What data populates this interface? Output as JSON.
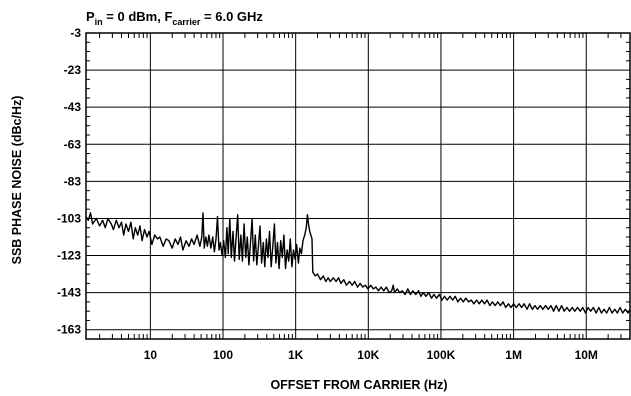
{
  "chart_data": {
    "type": "line",
    "title": {
      "p_label": "P",
      "p_sub": "in",
      "p_rest": " = 0 dBm, F",
      "f_sub": "carrier",
      "f_rest": " = 6.0 GHz"
    },
    "xlabel": "OFFSET FROM CARRIER (Hz)",
    "ylabel": "SSB PHASE NOISE (dBc/Hz)",
    "x_scale": "log",
    "xlim": [
      1.3,
      40000000
    ],
    "ylim": [
      -168,
      -3
    ],
    "grid": true,
    "x_ticks": [
      {
        "value": 10,
        "label": "10"
      },
      {
        "value": 100,
        "label": "100"
      },
      {
        "value": 1000,
        "label": "1K"
      },
      {
        "value": 10000,
        "label": "10K"
      },
      {
        "value": 100000,
        "label": "100K"
      },
      {
        "value": 1000000,
        "label": "1M"
      },
      {
        "value": 10000000,
        "label": "10M"
      }
    ],
    "y_ticks": [
      -3,
      -23,
      -43,
      -63,
      -83,
      -103,
      -123,
      -143,
      -163
    ],
    "series": [
      {
        "color": "#000000",
        "points": [
          [
            1.3,
            -102
          ],
          [
            1.4,
            -104
          ],
          [
            1.5,
            -100
          ],
          [
            1.6,
            -106
          ],
          [
            1.8,
            -103
          ],
          [
            2.0,
            -107
          ],
          [
            2.2,
            -104
          ],
          [
            2.4,
            -108
          ],
          [
            2.6,
            -103
          ],
          [
            2.9,
            -106
          ],
          [
            3.1,
            -109
          ],
          [
            3.4,
            -104
          ],
          [
            3.7,
            -108
          ],
          [
            4.0,
            -105
          ],
          [
            4.3,
            -112
          ],
          [
            4.6,
            -106
          ],
          [
            5.0,
            -110
          ],
          [
            5.4,
            -105
          ],
          [
            5.8,
            -114
          ],
          [
            6.2,
            -108
          ],
          [
            6.7,
            -112
          ],
          [
            7.2,
            -107
          ],
          [
            7.7,
            -115
          ],
          [
            8.3,
            -109
          ],
          [
            9.0,
            -113
          ],
          [
            9.6,
            -110
          ],
          [
            10.5,
            -117
          ],
          [
            11.5,
            -112
          ],
          [
            12.5,
            -114
          ],
          [
            13.5,
            -113
          ],
          [
            15,
            -118
          ],
          [
            16.5,
            -114
          ],
          [
            18,
            -115
          ],
          [
            20,
            -119
          ],
          [
            22,
            -114
          ],
          [
            24,
            -117
          ],
          [
            26,
            -113
          ],
          [
            28,
            -120
          ],
          [
            31,
            -115
          ],
          [
            34,
            -118
          ],
          [
            37,
            -114
          ],
          [
            40,
            -117
          ],
          [
            44,
            -112
          ],
          [
            48,
            -118
          ],
          [
            51,
            -113
          ],
          [
            53,
            -100
          ],
          [
            55,
            -119
          ],
          [
            58,
            -113
          ],
          [
            61,
            -118
          ],
          [
            64,
            -112
          ],
          [
            68,
            -119
          ],
          [
            72,
            -113
          ],
          [
            76,
            -121
          ],
          [
            80,
            -114
          ],
          [
            84,
            -102
          ],
          [
            88,
            -120
          ],
          [
            92,
            -116
          ],
          [
            97,
            -123
          ],
          [
            102,
            -115
          ],
          [
            108,
            -124
          ],
          [
            113,
            -108
          ],
          [
            118,
            -122
          ],
          [
            124,
            -103
          ],
          [
            130,
            -124
          ],
          [
            137,
            -110
          ],
          [
            144,
            -126
          ],
          [
            151,
            -114
          ],
          [
            159,
            -101
          ],
          [
            167,
            -125
          ],
          [
            176,
            -112
          ],
          [
            185,
            -126
          ],
          [
            195,
            -106
          ],
          [
            205,
            -124
          ],
          [
            216,
            -113
          ],
          [
            227,
            -128
          ],
          [
            239,
            -116
          ],
          [
            251,
            -103
          ],
          [
            264,
            -126
          ],
          [
            278,
            -112
          ],
          [
            292,
            -128
          ],
          [
            307,
            -118
          ],
          [
            323,
            -107
          ],
          [
            340,
            -127
          ],
          [
            358,
            -116
          ],
          [
            376,
            -129
          ],
          [
            396,
            -114
          ],
          [
            416,
            -124
          ],
          [
            437,
            -110
          ],
          [
            460,
            -129
          ],
          [
            484,
            -118
          ],
          [
            509,
            -106
          ],
          [
            535,
            -127
          ],
          [
            563,
            -116
          ],
          [
            592,
            -130
          ],
          [
            623,
            -115
          ],
          [
            655,
            -124
          ],
          [
            689,
            -112
          ],
          [
            725,
            -130
          ],
          [
            762,
            -120
          ],
          [
            802,
            -126
          ],
          [
            843,
            -114
          ],
          [
            887,
            -129
          ],
          [
            933,
            -120
          ],
          [
            982,
            -125
          ],
          [
            1030,
            -117
          ],
          [
            1090,
            -127
          ],
          [
            1140,
            -119
          ],
          [
            1200,
            -122
          ],
          [
            1260,
            -115
          ],
          [
            1330,
            -112
          ],
          [
            1400,
            -108
          ],
          [
            1450,
            -101
          ],
          [
            1500,
            -106
          ],
          [
            1560,
            -110
          ],
          [
            1620,
            -112
          ],
          [
            1680,
            -114
          ],
          [
            1720,
            -132
          ],
          [
            1850,
            -134
          ],
          [
            2000,
            -133
          ],
          [
            2200,
            -136
          ],
          [
            2400,
            -134
          ],
          [
            2600,
            -137
          ],
          [
            2800,
            -135
          ],
          [
            3000,
            -137
          ],
          [
            3300,
            -135
          ],
          [
            3600,
            -137
          ],
          [
            3900,
            -135
          ],
          [
            4200,
            -138
          ],
          [
            4600,
            -136
          ],
          [
            5000,
            -139
          ],
          [
            5500,
            -137
          ],
          [
            6000,
            -139
          ],
          [
            6500,
            -137
          ],
          [
            7100,
            -140
          ],
          [
            7700,
            -138
          ],
          [
            8400,
            -140
          ],
          [
            9100,
            -139
          ],
          [
            9900,
            -141
          ],
          [
            10800,
            -139
          ],
          [
            11700,
            -141
          ],
          [
            12700,
            -140
          ],
          [
            13800,
            -142
          ],
          [
            15000,
            -140
          ],
          [
            16300,
            -142
          ],
          [
            17700,
            -140
          ],
          [
            19300,
            -143
          ],
          [
            21000,
            -142
          ],
          [
            22000,
            -139
          ],
          [
            23000,
            -143
          ],
          [
            25000,
            -141
          ],
          [
            27000,
            -143
          ],
          [
            29500,
            -142
          ],
          [
            32000,
            -144
          ],
          [
            35000,
            -141
          ],
          [
            38000,
            -144
          ],
          [
            41000,
            -142
          ],
          [
            45000,
            -144
          ],
          [
            49000,
            -142
          ],
          [
            53000,
            -145
          ],
          [
            57000,
            -143
          ],
          [
            62000,
            -145
          ],
          [
            68000,
            -143
          ],
          [
            74000,
            -146
          ],
          [
            80000,
            -144
          ],
          [
            87000,
            -146
          ],
          [
            95000,
            -144
          ],
          [
            103000,
            -147
          ],
          [
            112000,
            -145
          ],
          [
            122000,
            -147
          ],
          [
            133000,
            -145
          ],
          [
            145000,
            -147
          ],
          [
            157000,
            -145
          ],
          [
            171000,
            -148
          ],
          [
            186000,
            -146
          ],
          [
            203000,
            -148
          ],
          [
            220000,
            -146
          ],
          [
            240000,
            -148
          ],
          [
            261000,
            -147
          ],
          [
            284000,
            -149
          ],
          [
            309000,
            -147
          ],
          [
            336000,
            -149
          ],
          [
            365000,
            -147
          ],
          [
            397000,
            -149
          ],
          [
            432000,
            -147
          ],
          [
            470000,
            -150
          ],
          [
            511000,
            -148
          ],
          [
            556000,
            -150
          ],
          [
            605000,
            -148
          ],
          [
            658000,
            -150
          ],
          [
            716000,
            -148
          ],
          [
            778000,
            -151
          ],
          [
            847000,
            -149
          ],
          [
            921000,
            -151
          ],
          [
            1000000,
            -149
          ],
          [
            1090000,
            -151
          ],
          [
            1190000,
            -149
          ],
          [
            1290000,
            -151
          ],
          [
            1400000,
            -149
          ],
          [
            1530000,
            -152
          ],
          [
            1660000,
            -149
          ],
          [
            1810000,
            -152
          ],
          [
            1970000,
            -150
          ],
          [
            2140000,
            -152
          ],
          [
            2330000,
            -150
          ],
          [
            2530000,
            -152
          ],
          [
            2760000,
            -150
          ],
          [
            3000000,
            -152
          ],
          [
            3260000,
            -150
          ],
          [
            3550000,
            -153
          ],
          [
            3860000,
            -150
          ],
          [
            4200000,
            -153
          ],
          [
            4570000,
            -150
          ],
          [
            4970000,
            -153
          ],
          [
            5410000,
            -151
          ],
          [
            5880000,
            -153
          ],
          [
            6400000,
            -151
          ],
          [
            6960000,
            -153
          ],
          [
            7570000,
            -151
          ],
          [
            8240000,
            -153
          ],
          [
            8960000,
            -151
          ],
          [
            9750000,
            -154
          ],
          [
            10600000,
            -151
          ],
          [
            11500000,
            -153
          ],
          [
            12500000,
            -151
          ],
          [
            13700000,
            -154
          ],
          [
            14900000,
            -151
          ],
          [
            16200000,
            -154
          ],
          [
            17600000,
            -152
          ],
          [
            19100000,
            -154
          ],
          [
            20800000,
            -151
          ],
          [
            22700000,
            -154
          ],
          [
            24700000,
            -152
          ],
          [
            26800000,
            -154
          ],
          [
            29200000,
            -151
          ],
          [
            31700000,
            -154
          ],
          [
            34500000,
            -152
          ],
          [
            37500000,
            -154
          ],
          [
            40000000,
            -152
          ]
        ]
      }
    ]
  }
}
